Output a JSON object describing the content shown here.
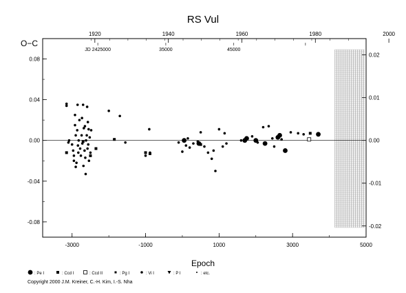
{
  "chart_data": {
    "type": "scatter",
    "title": "RS  Vul",
    "xlabel": "Epoch",
    "ylabel": "O−C",
    "xlim": [
      -3800,
      5000
    ],
    "ylim": [
      -0.095,
      0.1
    ],
    "x_ticks": [
      "-3000",
      "-1000",
      "1000",
      "3000",
      "5000"
    ],
    "y_ticks_left": [
      "-0.08",
      "-0.04",
      "0.00",
      "0.04",
      "0.08"
    ],
    "y_ticks_right": [
      "-0.02",
      "-0.01",
      "0.00",
      "0.01",
      "0.02"
    ],
    "year_ticks": [
      "1920",
      "1940",
      "1960",
      "1980",
      "2000"
    ],
    "jd_labels": [
      "JD 2425000",
      "35000",
      "45000"
    ],
    "hatched_region_x": [
      4150,
      5000
    ],
    "legend": [
      {
        "symbol": "circle-large",
        "label": ": Pe I"
      },
      {
        "symbol": "square",
        "label": ": Ccd I"
      },
      {
        "symbol": "square-open",
        "label": ": Ccd II"
      },
      {
        "symbol": "square-small",
        "label": ": Pg I"
      },
      {
        "symbol": "circle-small",
        "label": ": Vi I"
      },
      {
        "symbol": "triangle",
        "label": ": P I"
      },
      {
        "symbol": "dot",
        "label": ": etc."
      }
    ],
    "series": [
      {
        "symbol": "circle-small",
        "points": [
          [
            -3150,
            0.034
          ],
          [
            -3150,
            0.036
          ],
          [
            -3100,
            -0.002
          ],
          [
            -3080,
            0.0
          ],
          [
            -3000,
            -0.004
          ],
          [
            -2970,
            -0.01
          ],
          [
            -2950,
            -0.015
          ],
          [
            -2950,
            -0.02
          ],
          [
            -2920,
            0.025
          ],
          [
            -2920,
            0.015
          ],
          [
            -2900,
            0.005
          ],
          [
            -2900,
            -0.026
          ],
          [
            -2880,
            -0.022
          ],
          [
            -2860,
            0.01
          ],
          [
            -2850,
            0.035
          ],
          [
            -2840,
            -0.005
          ],
          [
            -2830,
            -0.012
          ],
          [
            -2820,
            0.0
          ],
          [
            -2800,
            0.02
          ],
          [
            -2780,
            -0.008
          ],
          [
            -2760,
            -0.015
          ],
          [
            -2740,
            0.005
          ],
          [
            -2730,
            0.022
          ],
          [
            -2720,
            -0.003
          ],
          [
            -2700,
            0.035
          ],
          [
            -2690,
            -0.025
          ],
          [
            -2680,
            0.012
          ],
          [
            -2660,
            -0.01
          ],
          [
            -2650,
            0.014
          ],
          [
            -2640,
            -0.017
          ],
          [
            -2630,
            -0.033
          ],
          [
            -2620,
            0.0
          ],
          [
            -2600,
            0.005
          ],
          [
            -2590,
            0.033
          ],
          [
            -2580,
            -0.008
          ],
          [
            -2570,
            0.018
          ],
          [
            -2560,
            -0.004
          ],
          [
            -2550,
            0.011
          ],
          [
            -2540,
            -0.02
          ],
          [
            -2520,
            0.003
          ],
          [
            -2500,
            -0.012
          ],
          [
            -2480,
            0.01
          ],
          [
            -2000,
            0.029
          ],
          [
            -1700,
            0.024
          ],
          [
            -1550,
            -0.002
          ],
          [
            -1000,
            -0.015
          ],
          [
            -900,
            0.011
          ],
          [
            -880,
            -0.012
          ],
          [
            -100,
            -0.002
          ],
          [
            0,
            -0.011
          ],
          [
            100,
            -0.005
          ],
          [
            150,
            0.002
          ],
          [
            200,
            -0.007
          ],
          [
            300,
            -0.003
          ],
          [
            420,
            -0.001
          ],
          [
            500,
            0.008
          ],
          [
            600,
            -0.006
          ],
          [
            700,
            -0.012
          ],
          [
            800,
            -0.018
          ],
          [
            850,
            -0.01
          ],
          [
            900,
            -0.03
          ],
          [
            1000,
            0.011
          ],
          [
            1100,
            -0.006
          ],
          [
            1150,
            0.007
          ],
          [
            1200,
            -0.003
          ],
          [
            1600,
            0.0
          ],
          [
            1900,
            0.004
          ],
          [
            2050,
            -0.002
          ],
          [
            2200,
            0.013
          ],
          [
            2350,
            0.014
          ],
          [
            2450,
            0.002
          ],
          [
            2500,
            -0.006
          ],
          [
            2650,
            0.006
          ],
          [
            2700,
            0.001
          ],
          [
            2950,
            0.008
          ],
          [
            3150,
            0.007
          ],
          [
            3300,
            0.006
          ]
        ]
      },
      {
        "symbol": "square",
        "points": [
          [
            -3150,
            -0.012
          ],
          [
            -2700,
            -0.001
          ],
          [
            -2500,
            -0.015
          ],
          [
            -2350,
            -0.008
          ],
          [
            -1850,
            0.001
          ],
          [
            -1000,
            -0.012
          ],
          [
            -880,
            -0.013
          ],
          [
            500,
            -0.004
          ],
          [
            3480,
            0.007
          ]
        ]
      },
      {
        "symbol": "circle-large",
        "points": [
          [
            50,
            0.0
          ],
          [
            450,
            -0.003
          ],
          [
            1700,
            0.0
          ],
          [
            1750,
            0.002
          ],
          [
            2000,
            0.0
          ],
          [
            2250,
            -0.003
          ],
          [
            2600,
            0.003
          ],
          [
            2650,
            0.005
          ],
          [
            2800,
            -0.01
          ],
          [
            3700,
            0.006
          ]
        ]
      },
      {
        "symbol": "square-open",
        "points": [
          [
            3450,
            0.001
          ]
        ]
      }
    ]
  },
  "copyright": "Copyright 2000 J.M. Kreiner, C.-H. Kim, I.-S. Nha"
}
